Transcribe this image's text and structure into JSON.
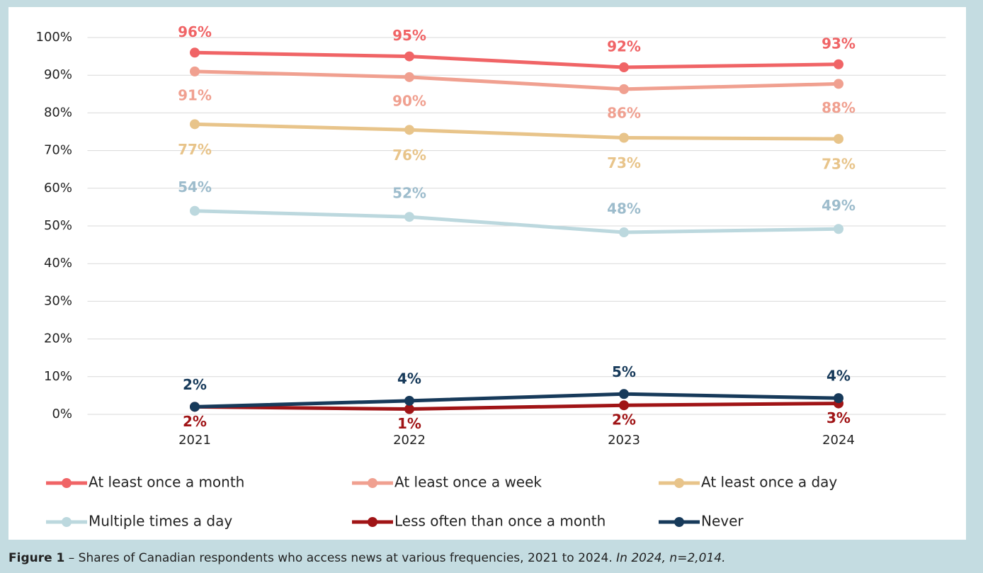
{
  "chart_data": {
    "type": "line",
    "categories": [
      "2021",
      "2022",
      "2023",
      "2024"
    ],
    "series": [
      {
        "name": "At least once a month",
        "color": "#f06466",
        "values": [
          96,
          95,
          92.1,
          92.9
        ],
        "value_labels": [
          "96%",
          "95%",
          "92%",
          "93%"
        ]
      },
      {
        "name": "At least once a week",
        "color": "#f0a090",
        "values": [
          91,
          89.5,
          86.3,
          87.7
        ],
        "value_labels": [
          "91%",
          "90%",
          "86%",
          "88%"
        ]
      },
      {
        "name": "At least once a day",
        "color": "#e8c48a",
        "values": [
          77,
          75.5,
          73.4,
          73.1
        ],
        "value_labels": [
          "77%",
          "76%",
          "73%",
          "73%"
        ]
      },
      {
        "name": "Multiple times a day",
        "color": "#bcd8de",
        "values": [
          54,
          52.4,
          48.3,
          49.2
        ],
        "value_labels": [
          "54%",
          "52%",
          "48%",
          "49%"
        ]
      },
      {
        "name": "Less often than once a month",
        "color": "#a01416",
        "values": [
          2,
          1.4,
          2.4,
          2.9
        ],
        "value_labels": [
          "2%",
          "1%",
          "2%",
          "3%"
        ]
      },
      {
        "name": "Never",
        "color": "#173a5a",
        "values": [
          2,
          3.6,
          5.4,
          4.3
        ],
        "value_labels": [
          "2%",
          "4%",
          "5%",
          "4%"
        ]
      }
    ],
    "ylim": [
      0,
      100
    ],
    "yticks": [
      {
        "value": 0,
        "label": "0%"
      },
      {
        "value": 10,
        "label": "10%"
      },
      {
        "value": 20,
        "label": "20%"
      },
      {
        "value": 30,
        "label": "30%"
      },
      {
        "value": 40,
        "label": "40%"
      },
      {
        "value": 50,
        "label": "50%"
      },
      {
        "value": 60,
        "label": "60%"
      },
      {
        "value": 70,
        "label": "70%"
      },
      {
        "value": 80,
        "label": "80%"
      },
      {
        "value": 90,
        "label": "90%"
      },
      {
        "value": 100,
        "label": "100%"
      }
    ],
    "grid": true,
    "legend": "bottom",
    "caption": {
      "label": "Figure 1",
      "text": " – Shares of Canadian respondents who access news at various frequencies, 2021 to 2024. ",
      "note": "In 2024, n=2,014."
    }
  }
}
